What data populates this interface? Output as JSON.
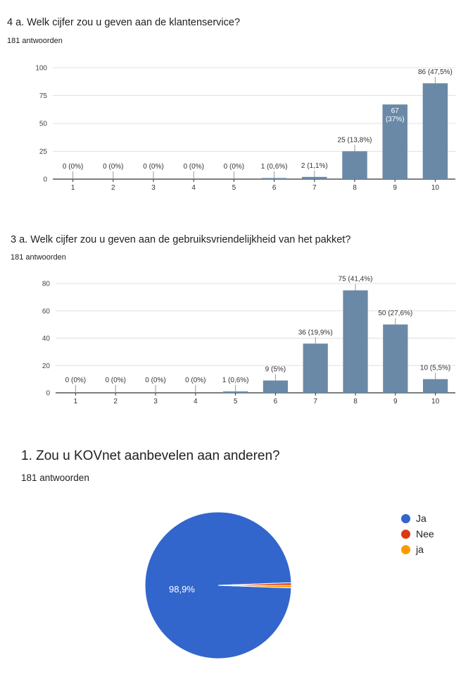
{
  "charts": [
    {
      "title": "4 a. Welk cijfer zou u geven aan de klantenservice?",
      "responses": "181 antwoorden"
    },
    {
      "title": "3 a. Welk cijfer zou u geven aan de gebruiksvriendelijkheid van het pakket?",
      "responses": "181 antwoorden"
    },
    {
      "title": "1. Zou u KOVnet aanbevelen aan anderen?",
      "responses": "181 antwoorden"
    }
  ],
  "chart_data": [
    {
      "type": "bar",
      "title": "4 a. Welk cijfer zou u geven aan de klantenservice?",
      "categories": [
        "1",
        "2",
        "3",
        "4",
        "5",
        "6",
        "7",
        "8",
        "9",
        "10"
      ],
      "values": [
        0,
        0,
        0,
        0,
        0,
        1,
        2,
        25,
        67,
        86
      ],
      "data_labels": [
        "0 (0%)",
        "0 (0%)",
        "0 (0%)",
        "0 (0%)",
        "0 (0%)",
        "1 (0,6%)",
        "2 (1,1%)",
        "25 (13,8%)",
        "67\n(37%)",
        "86 (47,5%)"
      ],
      "yticks": [
        "0",
        "25",
        "50",
        "75",
        "100"
      ],
      "ylim": [
        0,
        100
      ],
      "grid": true,
      "color": "#6a89a7"
    },
    {
      "type": "bar",
      "title": "3 a. Welk cijfer zou u geven aan de gebruiksvriendelijkheid van het pakket?",
      "categories": [
        "1",
        "2",
        "3",
        "4",
        "5",
        "6",
        "7",
        "8",
        "9",
        "10"
      ],
      "values": [
        0,
        0,
        0,
        0,
        1,
        9,
        36,
        75,
        50,
        10
      ],
      "data_labels": [
        "0 (0%)",
        "0 (0%)",
        "0 (0%)",
        "0 (0%)",
        "1 (0,6%)",
        "9 (5%)",
        "36 (19,9%)",
        "75 (41,4%)",
        "50 (27,6%)",
        "10 (5,5%)"
      ],
      "yticks": [
        "0",
        "20",
        "40",
        "60",
        "80"
      ],
      "ylim": [
        0,
        80
      ],
      "grid": true,
      "color": "#6a89a7"
    },
    {
      "type": "pie",
      "title": "1. Zou u KOVnet aanbevelen aan anderen?",
      "labels": [
        "Ja",
        "Nee",
        "ja"
      ],
      "values": [
        98.9,
        0.55,
        0.55
      ],
      "colors": [
        "#3366cc",
        "#dc3912",
        "#ff9900"
      ],
      "slice_label": "98,9%",
      "legend": "right"
    }
  ]
}
